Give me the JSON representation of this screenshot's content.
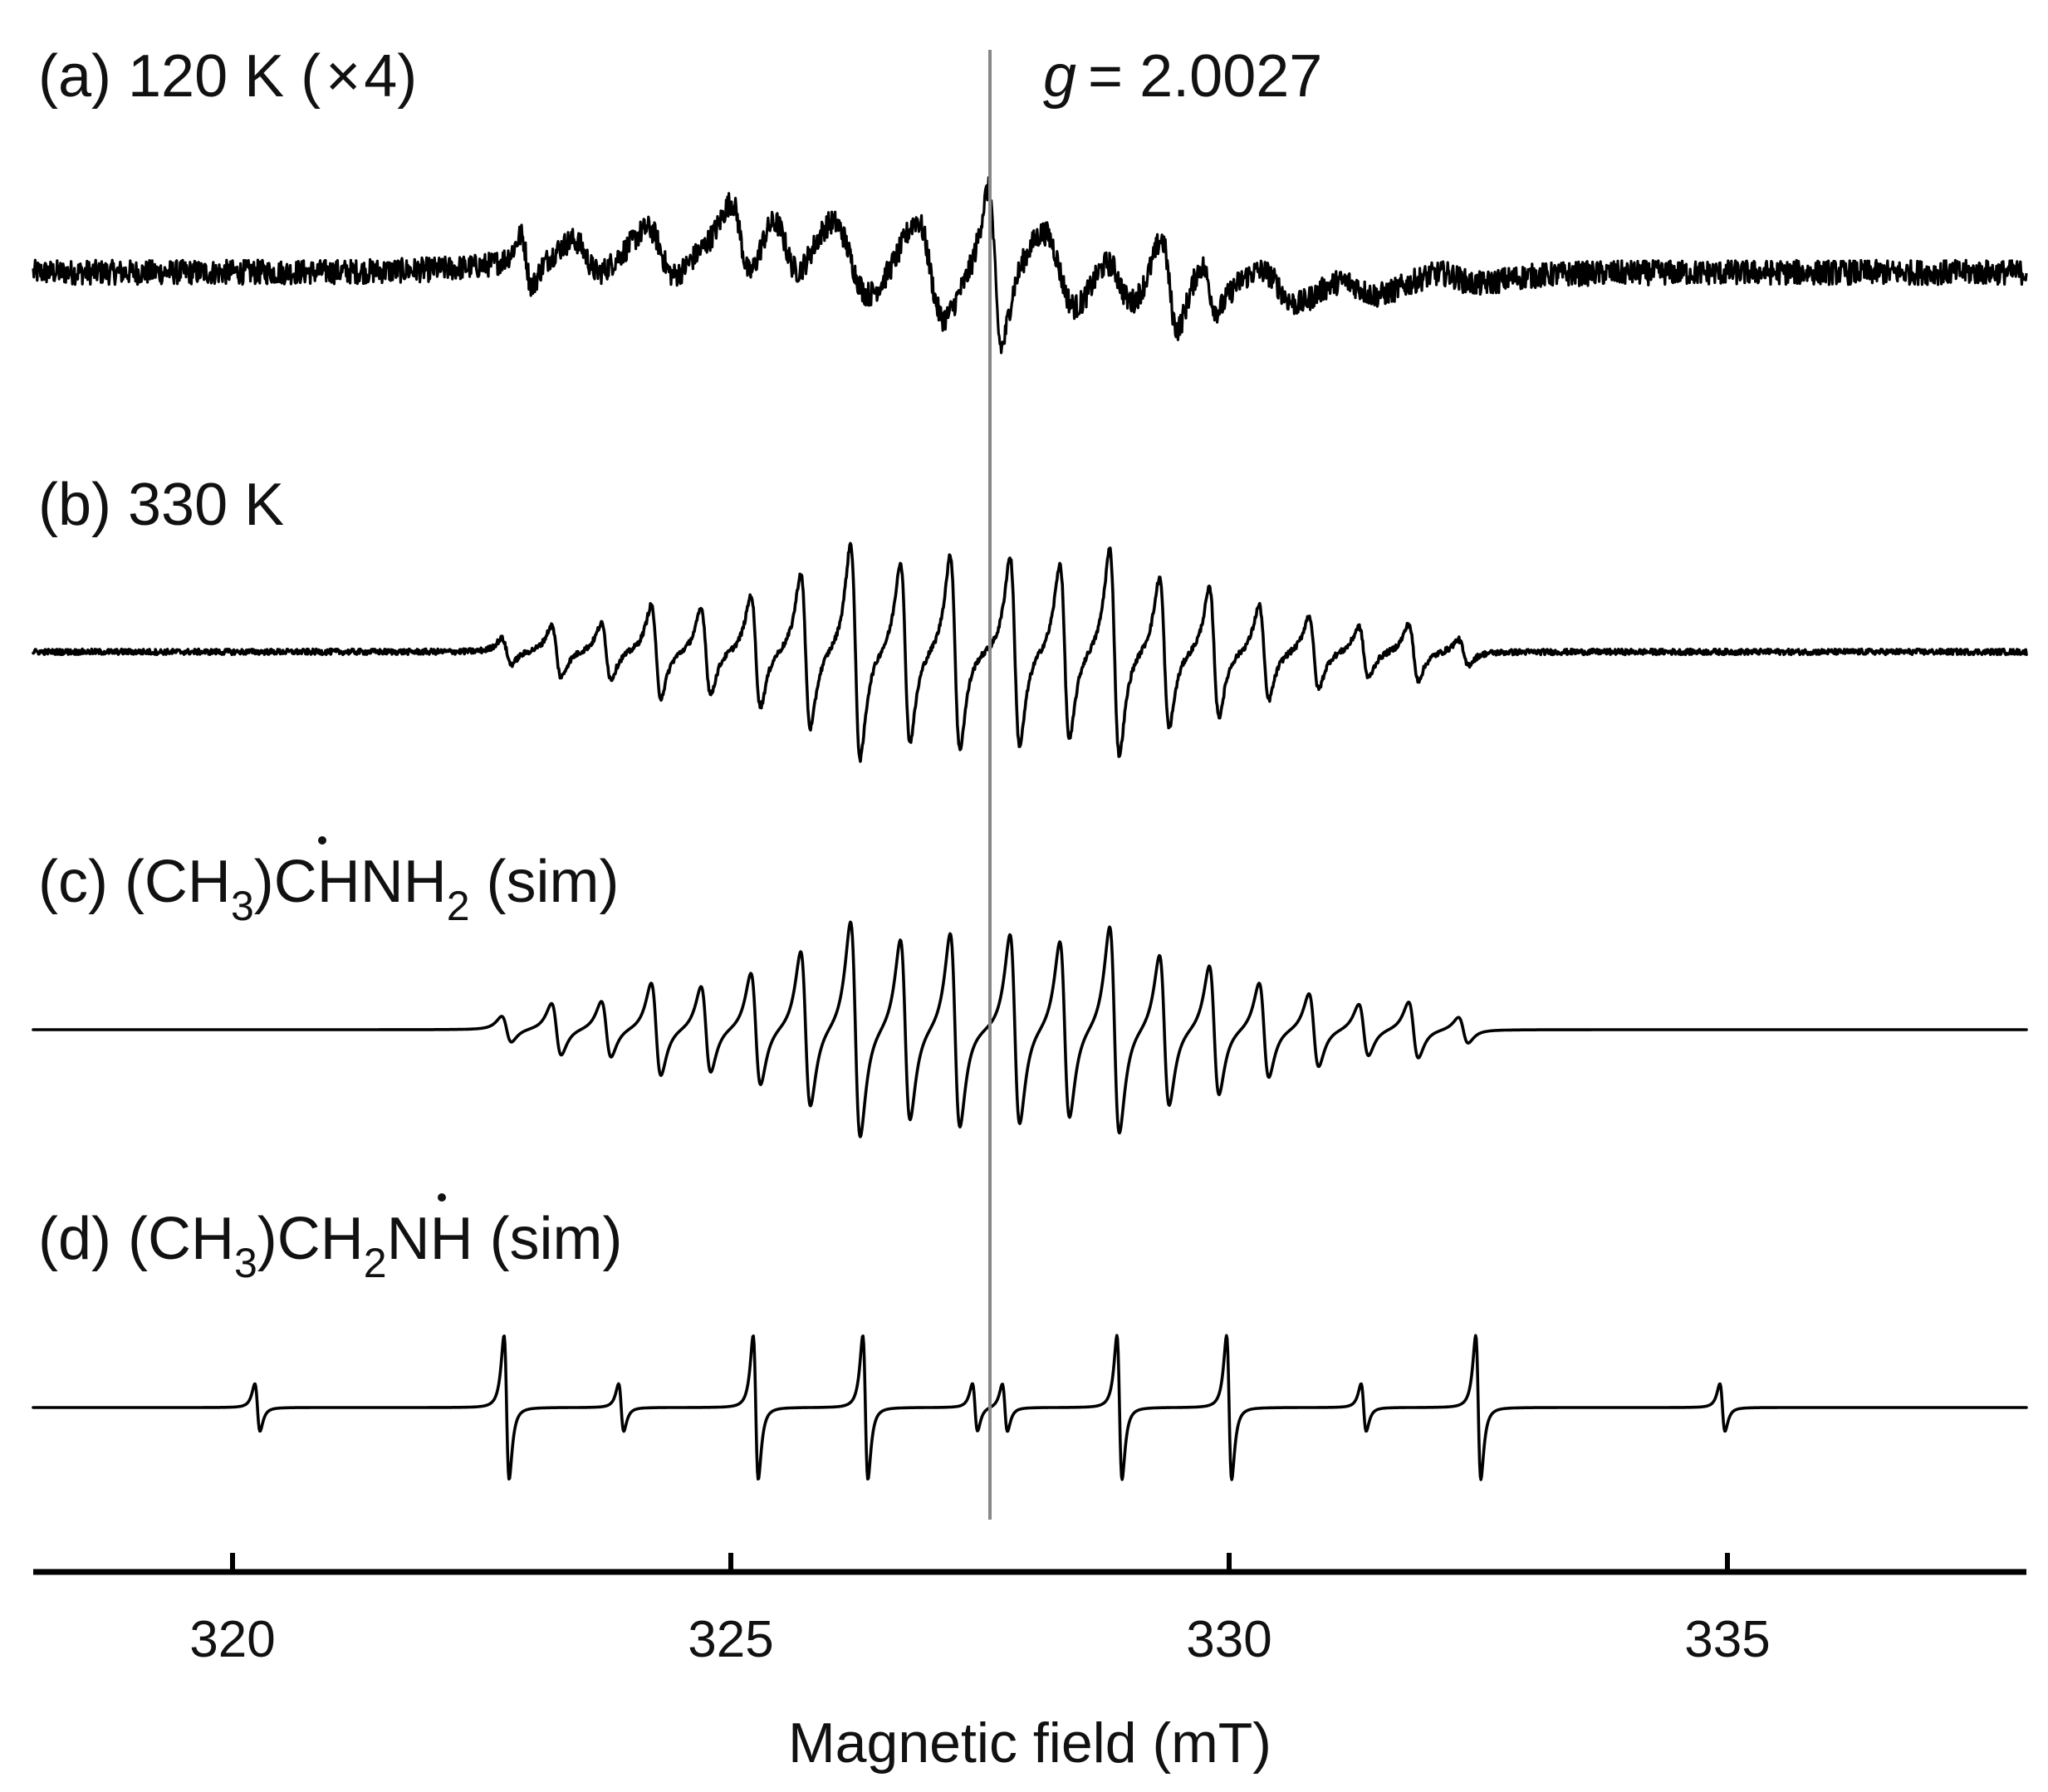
{
  "chart_data": {
    "type": "line",
    "title": "",
    "xlabel": "Magnetic field (mT)",
    "ylabel": "",
    "xlim": [
      318,
      338
    ],
    "xticks": [
      320,
      325,
      330,
      335
    ],
    "tick_labels": [
      "320",
      "325",
      "330",
      "335"
    ],
    "grid": false,
    "legend": "none",
    "reference_line": {
      "label_prefix": "g",
      "label_value": "= 2.0027",
      "x": 327.6,
      "color": "#888888"
    },
    "panels": [
      {
        "id": "a",
        "label_parts": [
          "(a) 120 K (",
          "×",
          "4)"
        ],
        "kind": "experimental",
        "noise": 0.045,
        "baseline_slope": 0.0,
        "lines": [
          {
            "x": 322.95,
            "amp": 0.35,
            "w": 0.1
          },
          {
            "x": 323.55,
            "amp": 0.25,
            "w": 0.25
          },
          {
            "x": 324.3,
            "amp": 0.35,
            "w": 0.25
          },
          {
            "x": 325.1,
            "amp": 0.55,
            "w": 0.18
          },
          {
            "x": 325.55,
            "amp": 0.45,
            "w": 0.25
          },
          {
            "x": 326.2,
            "amp": 0.55,
            "w": 0.35
          },
          {
            "x": 327.0,
            "amp": 0.7,
            "w": 0.25
          },
          {
            "x": 327.65,
            "amp": 1.1,
            "w": 0.12
          },
          {
            "x": 328.3,
            "amp": 0.55,
            "w": 0.3
          },
          {
            "x": 328.9,
            "amp": 0.35,
            "w": 0.25
          },
          {
            "x": 329.4,
            "amp": 0.65,
            "w": 0.15
          },
          {
            "x": 329.8,
            "amp": 0.35,
            "w": 0.15
          },
          {
            "x": 330.5,
            "amp": 0.25,
            "w": 0.35
          },
          {
            "x": 331.3,
            "amp": 0.15,
            "w": 0.4
          },
          {
            "x": 332.3,
            "amp": 0.1,
            "w": 0.4
          }
        ]
      },
      {
        "id": "b",
        "label_parts": [
          "(b) 330 K"
        ],
        "kind": "experimental",
        "noise": 0.008,
        "lines": [
          {
            "x": 322.75,
            "amp": 0.12
          },
          {
            "x": 323.25,
            "amp": 0.24
          },
          {
            "x": 323.75,
            "amp": 0.26
          },
          {
            "x": 324.25,
            "amp": 0.43
          },
          {
            "x": 324.75,
            "amp": 0.4
          },
          {
            "x": 325.25,
            "amp": 0.52
          },
          {
            "x": 325.75,
            "amp": 0.72
          },
          {
            "x": 326.25,
            "amp": 1.0
          },
          {
            "x": 326.75,
            "amp": 0.84
          },
          {
            "x": 327.25,
            "amp": 0.9
          },
          {
            "x": 327.85,
            "amp": 0.88
          },
          {
            "x": 328.35,
            "amp": 0.82
          },
          {
            "x": 328.85,
            "amp": 0.96
          },
          {
            "x": 329.35,
            "amp": 0.7
          },
          {
            "x": 329.85,
            "amp": 0.6
          },
          {
            "x": 330.35,
            "amp": 0.44
          },
          {
            "x": 330.85,
            "amp": 0.34
          },
          {
            "x": 331.35,
            "amp": 0.24
          },
          {
            "x": 331.85,
            "amp": 0.26
          },
          {
            "x": 332.35,
            "amp": 0.12
          }
        ]
      },
      {
        "id": "c",
        "label_parts": [
          "(c) (CH",
          "3",
          ")",
          "C",
          "HNH",
          "2",
          " (sim)"
        ],
        "kind": "simulation",
        "noise": 0,
        "lines": [
          {
            "x": 322.75,
            "amp": 0.12
          },
          {
            "x": 323.25,
            "amp": 0.24
          },
          {
            "x": 323.75,
            "amp": 0.26
          },
          {
            "x": 324.25,
            "amp": 0.43
          },
          {
            "x": 324.75,
            "amp": 0.4
          },
          {
            "x": 325.25,
            "amp": 0.52
          },
          {
            "x": 325.75,
            "amp": 0.72
          },
          {
            "x": 326.25,
            "amp": 1.0
          },
          {
            "x": 326.75,
            "amp": 0.84
          },
          {
            "x": 327.25,
            "amp": 0.9
          },
          {
            "x": 327.85,
            "amp": 0.88
          },
          {
            "x": 328.35,
            "amp": 0.82
          },
          {
            "x": 328.85,
            "amp": 0.96
          },
          {
            "x": 329.35,
            "amp": 0.7
          },
          {
            "x": 329.85,
            "amp": 0.6
          },
          {
            "x": 330.35,
            "amp": 0.44
          },
          {
            "x": 330.85,
            "amp": 0.34
          },
          {
            "x": 331.35,
            "amp": 0.24
          },
          {
            "x": 331.85,
            "amp": 0.26
          },
          {
            "x": 332.35,
            "amp": 0.12
          }
        ]
      },
      {
        "id": "d",
        "label_parts": [
          "(d) (CH",
          "3",
          ")CH",
          "2",
          "N",
          "H (sim)"
        ],
        "kind": "simulation",
        "noise": 0,
        "lines": [
          {
            "x": 320.25,
            "amp": 0.33
          },
          {
            "x": 322.75,
            "amp": 1.0
          },
          {
            "x": 323.9,
            "amp": 0.33
          },
          {
            "x": 325.25,
            "amp": 1.0
          },
          {
            "x": 326.35,
            "amp": 1.0
          },
          {
            "x": 327.45,
            "amp": 0.33
          },
          {
            "x": 327.75,
            "amp": 0.33
          },
          {
            "x": 328.9,
            "amp": 1.0
          },
          {
            "x": 330.0,
            "amp": 1.0
          },
          {
            "x": 331.35,
            "amp": 0.33
          },
          {
            "x": 332.5,
            "amp": 1.0
          },
          {
            "x": 334.95,
            "amp": 0.33
          }
        ]
      }
    ]
  }
}
